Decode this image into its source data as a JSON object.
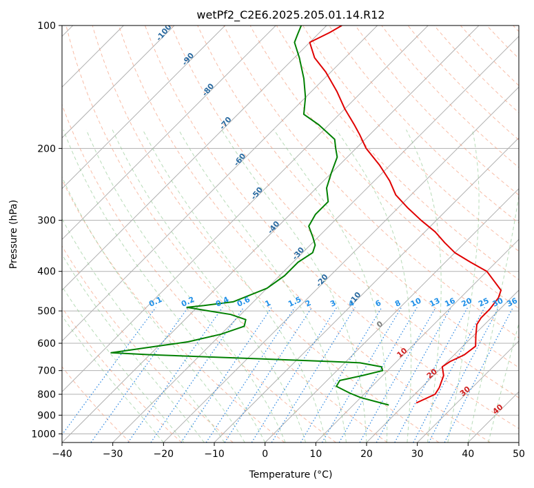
{
  "chart_data": {
    "type": "skew-t",
    "title": "wetPf2_C2E6.2025.205.01.14.R12",
    "xlabel": "Temperature (°C)",
    "ylabel": "Pressure (hPa)",
    "xlim": [
      -40,
      50
    ],
    "ylim": [
      1050,
      100
    ],
    "y_scale": "log",
    "grid": true,
    "x_ticks": [
      -40,
      -30,
      -20,
      -10,
      0,
      10,
      20,
      30,
      40,
      50
    ],
    "y_ticks": [
      100,
      200,
      300,
      400,
      500,
      600,
      700,
      800,
      900,
      1000
    ],
    "dry_adiabat_labels": [
      {
        "label": "-100",
        "T": -100,
        "p": 105
      },
      {
        "label": "-90",
        "T": -90,
        "p": 122
      },
      {
        "label": "-80",
        "T": -80,
        "p": 145
      },
      {
        "label": "-70",
        "T": -70,
        "p": 175
      },
      {
        "label": "-60",
        "T": -60,
        "p": 215
      },
      {
        "label": "-50",
        "T": -50,
        "p": 260
      },
      {
        "label": "-40",
        "T": -40,
        "p": 315
      },
      {
        "label": "-30",
        "T": -30,
        "p": 365
      },
      {
        "label": "-20",
        "T": -20,
        "p": 425
      },
      {
        "label": "-10",
        "T": -10,
        "p": 470
      }
    ],
    "moist_adiabat_labels": [
      {
        "label": "0",
        "T": 0,
        "p": 545
      },
      {
        "label": "10",
        "T": 10,
        "p": 640
      },
      {
        "label": "20",
        "T": 20,
        "p": 720
      },
      {
        "label": "30",
        "T": 30,
        "p": 795
      },
      {
        "label": "40",
        "T": 40,
        "p": 880
      }
    ],
    "mixing_ratio_labels": [
      "0.1",
      "0.2",
      "0.4",
      "0.6",
      "1",
      "1.5",
      "2",
      "3",
      "4",
      "6",
      "8",
      "10",
      "13",
      "16",
      "20",
      "25",
      "30",
      "36"
    ],
    "mixing_ratio_label_p": 500,
    "series": [
      {
        "name": "",
        "color": "#e00000",
        "points": [
          [
            840,
            22
          ],
          [
            800,
            24
          ],
          [
            770,
            23.5
          ],
          [
            720,
            22
          ],
          [
            685,
            20
          ],
          [
            665,
            20.5
          ],
          [
            640,
            22
          ],
          [
            610,
            22.5
          ],
          [
            575,
            20.5
          ],
          [
            540,
            18.5
          ],
          [
            520,
            18
          ],
          [
            495,
            18
          ],
          [
            465,
            17.5
          ],
          [
            445,
            16.5
          ],
          [
            400,
            10
          ],
          [
            380,
            5
          ],
          [
            360,
            0
          ],
          [
            340,
            -4
          ],
          [
            320,
            -8
          ],
          [
            300,
            -13
          ],
          [
            280,
            -18
          ],
          [
            260,
            -23
          ],
          [
            240,
            -27
          ],
          [
            220,
            -32
          ],
          [
            200,
            -38
          ],
          [
            185,
            -42
          ],
          [
            175,
            -45
          ],
          [
            160,
            -50
          ],
          [
            145,
            -55
          ],
          [
            130,
            -61
          ],
          [
            120,
            -66
          ],
          [
            110,
            -70
          ],
          [
            104,
            -68
          ],
          [
            100,
            -67
          ]
        ]
      },
      {
        "name": "",
        "color": "#008000",
        "points": [
          [
            850,
            17
          ],
          [
            835,
            14
          ],
          [
            815,
            10
          ],
          [
            795,
            7
          ],
          [
            765,
            3
          ],
          [
            740,
            2.5
          ],
          [
            720,
            6
          ],
          [
            700,
            9
          ],
          [
            685,
            8
          ],
          [
            670,
            3
          ],
          [
            665,
            -3
          ],
          [
            650,
            -25
          ],
          [
            640,
            -40
          ],
          [
            633,
            -48
          ],
          [
            615,
            -42
          ],
          [
            595,
            -35
          ],
          [
            570,
            -30
          ],
          [
            545,
            -27
          ],
          [
            525,
            -28
          ],
          [
            510,
            -32
          ],
          [
            500,
            -37
          ],
          [
            490,
            -42
          ],
          [
            485,
            -39
          ],
          [
            475,
            -34
          ],
          [
            440,
            -30
          ],
          [
            410,
            -29
          ],
          [
            380,
            -29
          ],
          [
            360,
            -28
          ],
          [
            345,
            -29
          ],
          [
            330,
            -31
          ],
          [
            310,
            -34
          ],
          [
            290,
            -35
          ],
          [
            270,
            -35
          ],
          [
            250,
            -38
          ],
          [
            230,
            -40
          ],
          [
            210,
            -42
          ],
          [
            200,
            -44
          ],
          [
            190,
            -46
          ],
          [
            175,
            -52
          ],
          [
            165,
            -57
          ],
          [
            150,
            -60
          ],
          [
            135,
            -64
          ],
          [
            120,
            -69
          ],
          [
            110,
            -73
          ],
          [
            105,
            -74
          ],
          [
            100,
            -75
          ]
        ]
      }
    ]
  }
}
